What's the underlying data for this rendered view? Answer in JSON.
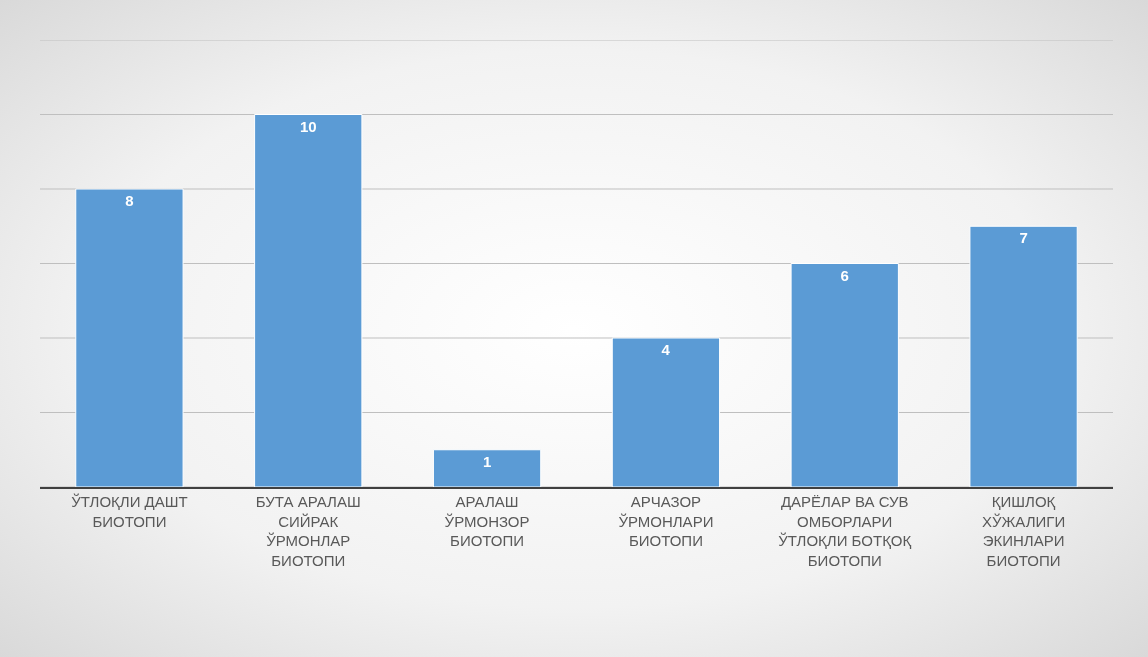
{
  "chart_data": {
    "type": "bar",
    "categories": [
      "ЎТЛОҚЛИ ДАШТ БИОТОПИ",
      "БУТА АРАЛАШ СИЙРАК ЎРМОНЛАР БИОТОПИ",
      "АРАЛАШ ЎРМОНЗОР БИОТОПИ",
      "АРЧАЗОР ЎРМОНЛАРИ БИОТОПИ",
      "ДАРЁЛАР ВА СУВ ОМБОРЛАРИ ЎТЛОҚЛИ БОТҚОҚ БИОТОПИ",
      "ҚИШЛОҚ ХЎЖАЛИГИ ЭКИНЛАРИ БИОТОПИ"
    ],
    "values": [
      8,
      10,
      1,
      4,
      6,
      7
    ],
    "color": "#5b9bd5",
    "data_labels": true,
    "ylim": [
      0,
      12
    ],
    "yticks": [
      {
        "value": 0,
        "label": null
      },
      {
        "value": 2,
        "label": null
      },
      {
        "value": 4,
        "label": null
      },
      {
        "value": 6,
        "label": null
      },
      {
        "value": 8,
        "label": null
      },
      {
        "value": 10,
        "label": null
      },
      {
        "value": 12,
        "label": null
      }
    ],
    "grid": "y",
    "tick_labels": "x"
  }
}
